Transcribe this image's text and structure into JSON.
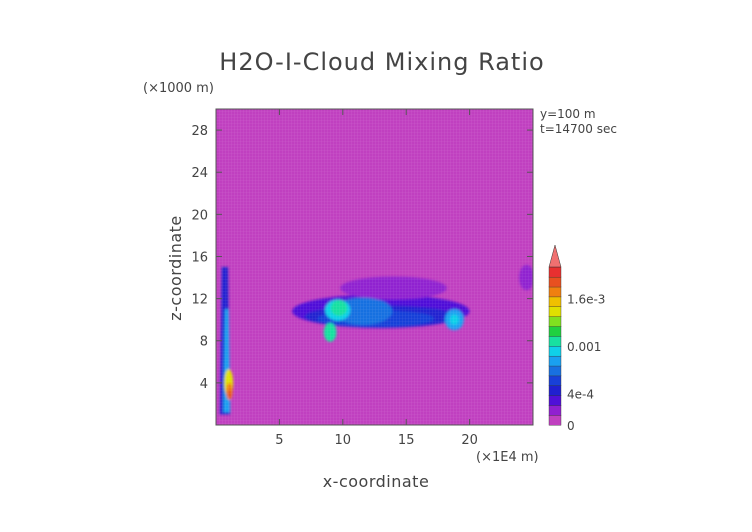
{
  "chart_data": {
    "type": "heatmap",
    "title": "H2O-I-Cloud Mixing Ratio",
    "xlabel": "x-coordinate",
    "ylabel": "z-coordinate",
    "x_unit": "(×1E4 m)",
    "y_unit": "(×1000 m)",
    "xlim": [
      0,
      25
    ],
    "ylim": [
      0,
      30
    ],
    "x_ticks": [
      5,
      10,
      15,
      20
    ],
    "y_ticks": [
      4,
      8,
      12,
      16,
      20,
      24,
      28
    ],
    "annotations": [
      "y=100 m",
      "t=14700 sec"
    ],
    "colorbar": {
      "range": [
        0,
        0.002
      ],
      "tick_labels": [
        "0",
        "4e-4",
        "0.001",
        "1.6e-3"
      ],
      "tick_values": [
        0,
        0.0004,
        0.001,
        0.0016
      ],
      "extend": "max",
      "colors": [
        "#c040c0",
        "#9020d0",
        "#5010d8",
        "#2020d0",
        "#1840d8",
        "#1870e0",
        "#1aa0f0",
        "#10d0e8",
        "#18e0a0",
        "#20d040",
        "#80e020",
        "#e0e000",
        "#f0c000",
        "#f08010",
        "#e85020",
        "#e83030"
      ],
      "over_color": "#f07070"
    },
    "background_color": "#c040c0",
    "features": [
      {
        "kind": "ellipse",
        "cx": 13.0,
        "cy": 10.8,
        "rx": 7.0,
        "ry": 1.6,
        "level": 2
      },
      {
        "kind": "ellipse",
        "cx": 13.0,
        "cy": 10.3,
        "rx": 6.0,
        "ry": 1.05,
        "level": 3
      },
      {
        "kind": "ellipse",
        "cx": 12.6,
        "cy": 10.1,
        "rx": 4.6,
        "ry": 0.8,
        "level": 4
      },
      {
        "kind": "ellipse",
        "cx": 14.0,
        "cy": 13.0,
        "rx": 4.2,
        "ry": 1.1,
        "level": 1
      },
      {
        "kind": "ellipse",
        "cx": 11.6,
        "cy": 10.8,
        "rx": 2.3,
        "ry": 1.3,
        "level": 5
      },
      {
        "kind": "ellipse",
        "cx": 9.6,
        "cy": 10.9,
        "rx": 1.0,
        "ry": 1.0,
        "level": 7
      },
      {
        "kind": "ellipse",
        "cx": 9.7,
        "cy": 11.1,
        "rx": 0.65,
        "ry": 0.75,
        "level": 8
      },
      {
        "kind": "ellipse",
        "cx": 9.0,
        "cy": 8.8,
        "rx": 0.5,
        "ry": 0.9,
        "level": 8
      },
      {
        "kind": "ellipse",
        "cx": 18.8,
        "cy": 10.0,
        "rx": 0.75,
        "ry": 1.0,
        "level": 6
      },
      {
        "kind": "ellipse",
        "cx": 18.8,
        "cy": 10.0,
        "rx": 0.35,
        "ry": 0.5,
        "level": 7
      },
      {
        "kind": "column",
        "x": 0.7,
        "y0": 1.0,
        "y1": 15.0,
        "w0": 0.8,
        "w1": 0.5,
        "level": 3
      },
      {
        "kind": "column",
        "x": 0.85,
        "y0": 1.2,
        "y1": 11.0,
        "w0": 0.55,
        "w1": 0.3,
        "level": 6
      },
      {
        "kind": "ellipse",
        "cx": 1.0,
        "cy": 4.0,
        "rx": 0.35,
        "ry": 1.3,
        "level": 11
      },
      {
        "kind": "ellipse",
        "cx": 1.05,
        "cy": 3.2,
        "rx": 0.25,
        "ry": 0.8,
        "level": 13
      },
      {
        "kind": "ellipse",
        "cx": 1.05,
        "cy": 2.9,
        "rx": 0.15,
        "ry": 0.45,
        "level": 14
      },
      {
        "kind": "ellipse",
        "cx": 24.5,
        "cy": 14.0,
        "rx": 0.6,
        "ry": 1.2,
        "level": 1
      }
    ]
  }
}
